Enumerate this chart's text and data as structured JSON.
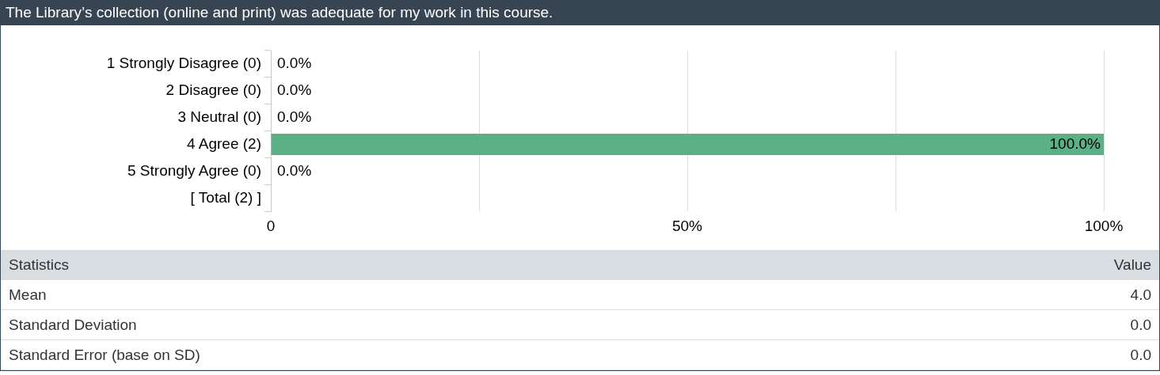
{
  "chart_data": [
    {
      "type": "bar",
      "orientation": "horizontal",
      "title": "The Library’s collection (online and print) was adequate for my work in this course.",
      "categories": [
        "1 Strongly Disagree (0)",
        "2 Disagree (0)",
        "3 Neutral (0)",
        "4 Agree (2)",
        "5 Strongly Agree (0)",
        "[ Total (2) ]"
      ],
      "values": [
        0,
        0,
        0,
        100,
        0,
        null
      ],
      "value_labels": [
        "0.0%",
        "0.0%",
        "0.0%",
        "100.0%",
        "0.0%",
        null
      ],
      "color": "#5cb085",
      "xlim": [
        0,
        100
      ],
      "xticks": [
        {
          "value": 0,
          "label": "0"
        },
        {
          "value": 25,
          "label": null
        },
        {
          "value": 50,
          "label": "50%"
        },
        {
          "value": 75,
          "label": null
        },
        {
          "value": 100,
          "label": "100%"
        }
      ],
      "grid": "x",
      "legend": false
    },
    {
      "type": "other",
      "annotations": [
        "Statistics",
        "Value",
        "Mean",
        "4.0",
        "Standard Deviation",
        "0.0",
        "Standard Error (base on SD)",
        "0.0"
      ]
    }
  ]
}
